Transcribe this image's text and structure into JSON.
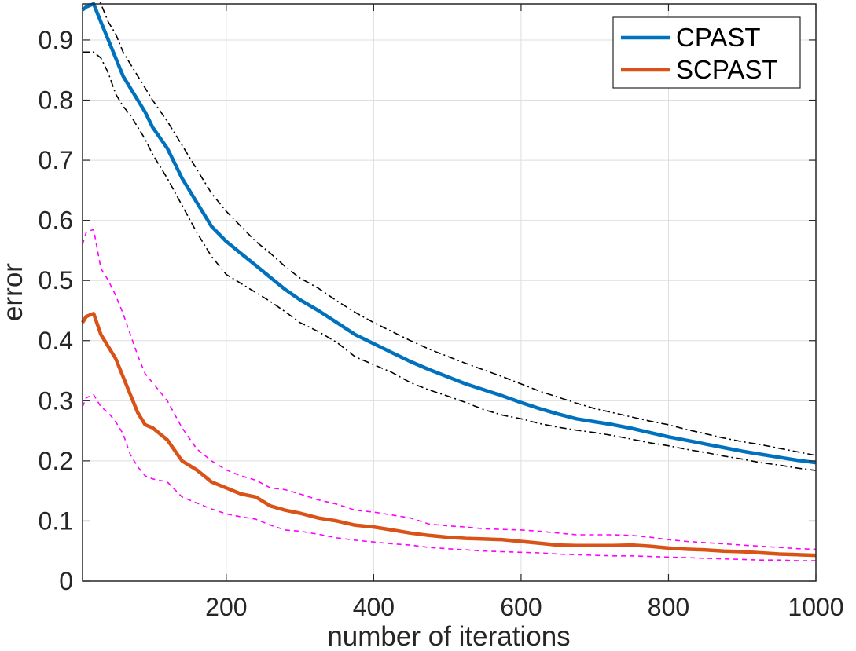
{
  "chart_data": {
    "type": "line",
    "title": "",
    "xlabel": "number of iterations",
    "ylabel": "error",
    "xlim": [
      5,
      1000
    ],
    "ylim": [
      0,
      0.96
    ],
    "xticks": [
      200,
      400,
      600,
      800,
      1000
    ],
    "xtick_labels": [
      "200",
      "400",
      "600",
      "800",
      "1000"
    ],
    "yticks": [
      0,
      0.1,
      0.2,
      0.3,
      0.4,
      0.5,
      0.6,
      0.7,
      0.8,
      0.9
    ],
    "ytick_labels": [
      "0",
      "0.1",
      "0.2",
      "0.3",
      "0.4",
      "0.5",
      "0.6",
      "0.7",
      "0.8",
      "0.9"
    ],
    "grid": true,
    "legend_position": "top-right",
    "x": [
      5,
      10,
      20,
      30,
      40,
      50,
      60,
      70,
      80,
      90,
      100,
      120,
      140,
      160,
      180,
      200,
      220,
      240,
      260,
      280,
      300,
      325,
      350,
      375,
      400,
      425,
      450,
      475,
      500,
      525,
      550,
      575,
      600,
      625,
      650,
      675,
      700,
      725,
      750,
      775,
      800,
      825,
      850,
      875,
      900,
      925,
      950,
      975,
      1000
    ],
    "series": [
      {
        "name": "CPAST",
        "color": "#0072BD",
        "style": "solid",
        "values": [
          0.95,
          0.955,
          0.96,
          0.93,
          0.9,
          0.87,
          0.84,
          0.82,
          0.8,
          0.78,
          0.755,
          0.72,
          0.67,
          0.63,
          0.59,
          0.565,
          0.545,
          0.525,
          0.505,
          0.485,
          0.468,
          0.45,
          0.43,
          0.41,
          0.395,
          0.38,
          0.365,
          0.352,
          0.34,
          0.328,
          0.318,
          0.308,
          0.297,
          0.287,
          0.278,
          0.27,
          0.265,
          0.26,
          0.254,
          0.247,
          0.24,
          0.234,
          0.228,
          0.222,
          0.216,
          0.211,
          0.206,
          0.201,
          0.197
        ]
      },
      {
        "name": "",
        "color": "#000000",
        "style": "dash-dot",
        "values": [
          0.97,
          0.975,
          0.98,
          0.96,
          0.93,
          0.91,
          0.88,
          0.86,
          0.84,
          0.82,
          0.8,
          0.765,
          0.725,
          0.685,
          0.645,
          0.615,
          0.59,
          0.565,
          0.545,
          0.523,
          0.504,
          0.487,
          0.466,
          0.447,
          0.43,
          0.415,
          0.4,
          0.386,
          0.374,
          0.362,
          0.351,
          0.34,
          0.328,
          0.316,
          0.306,
          0.296,
          0.287,
          0.28,
          0.273,
          0.266,
          0.26,
          0.252,
          0.245,
          0.238,
          0.232,
          0.227,
          0.221,
          0.215,
          0.209
        ]
      },
      {
        "name": "",
        "color": "#000000",
        "style": "dash-dot",
        "values": [
          0.88,
          0.88,
          0.88,
          0.87,
          0.845,
          0.81,
          0.79,
          0.775,
          0.755,
          0.735,
          0.71,
          0.67,
          0.625,
          0.58,
          0.54,
          0.51,
          0.495,
          0.48,
          0.465,
          0.448,
          0.43,
          0.415,
          0.397,
          0.373,
          0.36,
          0.347,
          0.33,
          0.318,
          0.308,
          0.297,
          0.285,
          0.276,
          0.27,
          0.262,
          0.256,
          0.251,
          0.247,
          0.242,
          0.236,
          0.23,
          0.225,
          0.219,
          0.214,
          0.208,
          0.203,
          0.197,
          0.193,
          0.188,
          0.184
        ]
      },
      {
        "name": "SCPAST",
        "color": "#D95319",
        "style": "solid",
        "values": [
          0.43,
          0.44,
          0.445,
          0.41,
          0.39,
          0.37,
          0.34,
          0.31,
          0.28,
          0.26,
          0.255,
          0.235,
          0.2,
          0.185,
          0.165,
          0.155,
          0.145,
          0.14,
          0.125,
          0.118,
          0.113,
          0.105,
          0.1,
          0.093,
          0.09,
          0.085,
          0.08,
          0.076,
          0.073,
          0.071,
          0.07,
          0.069,
          0.066,
          0.063,
          0.06,
          0.059,
          0.059,
          0.059,
          0.06,
          0.058,
          0.055,
          0.053,
          0.052,
          0.05,
          0.049,
          0.047,
          0.045,
          0.044,
          0.043
        ]
      },
      {
        "name": "",
        "color": "#FF00FF",
        "style": "dashed",
        "values": [
          0.56,
          0.58,
          0.585,
          0.52,
          0.5,
          0.475,
          0.445,
          0.41,
          0.375,
          0.345,
          0.33,
          0.3,
          0.255,
          0.22,
          0.2,
          0.185,
          0.175,
          0.168,
          0.155,
          0.152,
          0.145,
          0.135,
          0.128,
          0.118,
          0.115,
          0.11,
          0.105,
          0.095,
          0.092,
          0.09,
          0.087,
          0.086,
          0.085,
          0.083,
          0.08,
          0.077,
          0.077,
          0.077,
          0.076,
          0.073,
          0.069,
          0.066,
          0.064,
          0.062,
          0.06,
          0.058,
          0.056,
          0.054,
          0.053
        ]
      },
      {
        "name": "",
        "color": "#FF00FF",
        "style": "dashed",
        "values": [
          0.29,
          0.305,
          0.31,
          0.29,
          0.28,
          0.265,
          0.245,
          0.21,
          0.19,
          0.175,
          0.17,
          0.165,
          0.14,
          0.13,
          0.12,
          0.112,
          0.107,
          0.103,
          0.093,
          0.085,
          0.083,
          0.078,
          0.072,
          0.068,
          0.065,
          0.062,
          0.06,
          0.056,
          0.054,
          0.052,
          0.05,
          0.049,
          0.048,
          0.047,
          0.045,
          0.044,
          0.043,
          0.042,
          0.042,
          0.041,
          0.04,
          0.039,
          0.038,
          0.037,
          0.036,
          0.035,
          0.035,
          0.034,
          0.034
        ]
      }
    ]
  }
}
